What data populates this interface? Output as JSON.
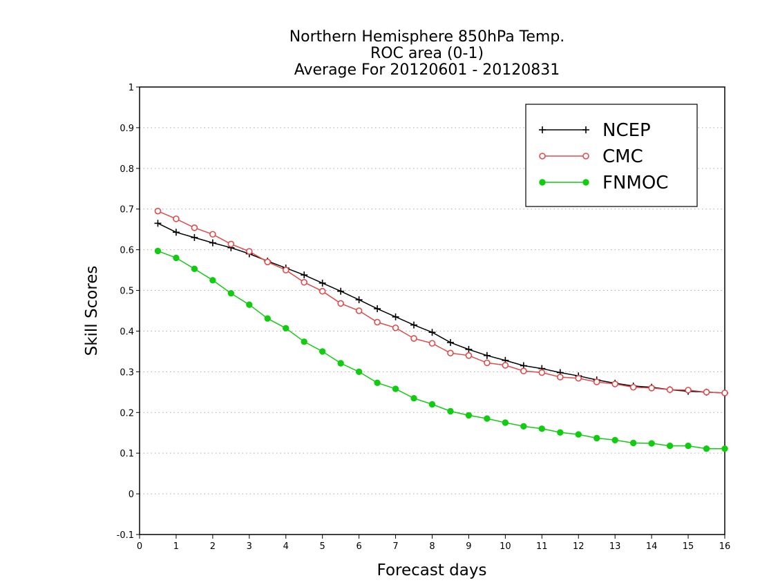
{
  "chart_data": {
    "type": "line",
    "title_lines": [
      "Northern Hemisphere 850hPa Temp.",
      "ROC area (0-1)",
      "Average For 20120601 - 20120831"
    ],
    "xlabel": "Forecast days",
    "ylabel": "Skill Scores",
    "xlim": [
      0,
      16
    ],
    "ylim": [
      -0.1,
      1
    ],
    "x_ticks": [
      0,
      1,
      2,
      3,
      4,
      5,
      6,
      7,
      8,
      9,
      10,
      11,
      12,
      13,
      14,
      15,
      16
    ],
    "y_ticks": [
      -0.1,
      0,
      0.1,
      0.2,
      0.3,
      0.4,
      0.5,
      0.6,
      0.7,
      0.8,
      0.9,
      1
    ],
    "y_tick_labels": [
      "-0.1",
      "0",
      "0.1",
      "0.2",
      "0.3",
      "0.4",
      "0.5",
      "0.6",
      "0.7",
      "0.8",
      "0.9",
      "1"
    ],
    "grid": "horizontal dotted",
    "legend_position": "top-right",
    "x": [
      0.5,
      1,
      1.5,
      2,
      2.5,
      3,
      3.5,
      4,
      4.5,
      5,
      5.5,
      6,
      6.5,
      7,
      7.5,
      8,
      8.5,
      9,
      9.5,
      10,
      10.5,
      11,
      11.5,
      12,
      12.5,
      13,
      13.5,
      14,
      14.5,
      15,
      15.5,
      16
    ],
    "series": [
      {
        "name": "NCEP",
        "color": "#000000",
        "marker": "plus",
        "values": [
          0.665,
          0.643,
          0.63,
          0.617,
          0.605,
          0.59,
          0.572,
          0.555,
          0.538,
          0.518,
          0.498,
          0.477,
          0.455,
          0.435,
          0.415,
          0.397,
          0.372,
          0.355,
          0.34,
          0.328,
          0.315,
          0.308,
          0.298,
          0.29,
          0.28,
          0.272,
          0.265,
          0.262,
          0.256,
          0.252,
          0.25,
          0.248
        ]
      },
      {
        "name": "CMC",
        "color": "#e04a4a",
        "marker": "open-circle",
        "values": [
          0.695,
          0.676,
          0.654,
          0.638,
          0.614,
          0.596,
          0.57,
          0.55,
          0.52,
          0.498,
          0.468,
          0.45,
          0.422,
          0.408,
          0.382,
          0.37,
          0.346,
          0.34,
          0.322,
          0.316,
          0.302,
          0.298,
          0.287,
          0.284,
          0.275,
          0.27,
          0.262,
          0.26,
          0.256,
          0.255,
          0.25,
          0.248
        ]
      },
      {
        "name": "FNMOC",
        "color": "#11cc11",
        "marker": "filled-circle",
        "values": [
          0.597,
          0.58,
          0.553,
          0.525,
          0.493,
          0.465,
          0.431,
          0.407,
          0.374,
          0.35,
          0.321,
          0.3,
          0.273,
          0.258,
          0.235,
          0.22,
          0.203,
          0.193,
          0.185,
          0.175,
          0.166,
          0.16,
          0.151,
          0.146,
          0.137,
          0.132,
          0.125,
          0.124,
          0.118,
          0.118,
          0.111,
          0.111
        ]
      }
    ]
  }
}
